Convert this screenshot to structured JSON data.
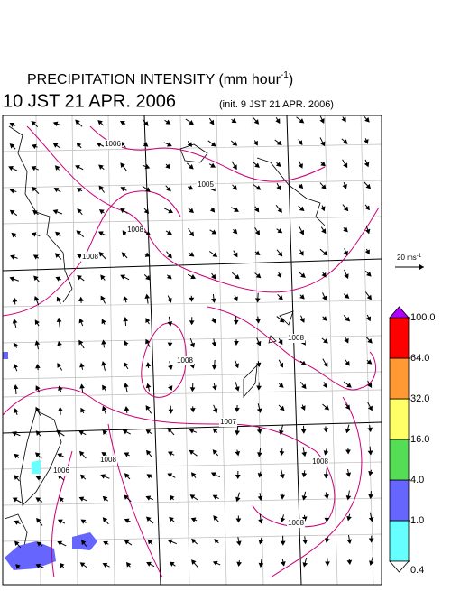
{
  "header": {
    "title_main": "PRECIPITATION INTENSITY (mm hour",
    "title_sup": "-1",
    "title_end": ")",
    "valid_time": "10 JST 21 APR. 2006",
    "init_time": "(init. 9 JST 21 APR. 2006)"
  },
  "reference_vector": {
    "label_main": "20 ms",
    "label_sup": "-1"
  },
  "colorbar": {
    "levels": [
      {
        "value": 0.4,
        "label": "0.4"
      },
      {
        "value": 1,
        "label": "1.0"
      },
      {
        "value": 4,
        "label": "4.0"
      },
      {
        "value": 16,
        "label": "16.0"
      },
      {
        "value": 32,
        "label": "32.0"
      },
      {
        "value": 64,
        "label": "64.0"
      },
      {
        "value": 100,
        "label": "100.0"
      }
    ],
    "colors": [
      "#66ffff",
      "#6666ff",
      "#55dd55",
      "#ffff66",
      "#ff9933",
      "#ff0000"
    ],
    "under_color": "#ffffff",
    "over_color": "#b000ff"
  },
  "contour_labels": [
    1006,
    1005,
    1008,
    1008,
    1008,
    1008,
    1007,
    1006,
    1008,
    1008,
    1008
  ]
}
